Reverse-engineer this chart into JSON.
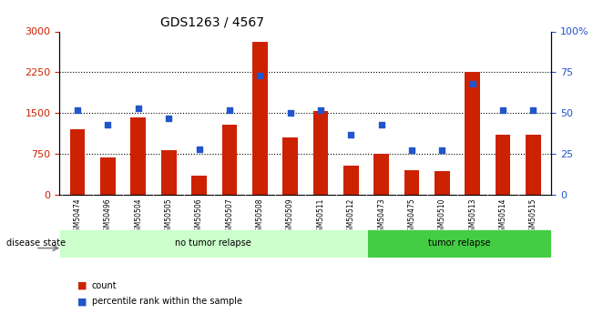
{
  "title": "GDS1263 / 4567",
  "samples": [
    "GSM50474",
    "GSM50496",
    "GSM50504",
    "GSM50505",
    "GSM50506",
    "GSM50507",
    "GSM50508",
    "GSM50509",
    "GSM50511",
    "GSM50512",
    "GSM50473",
    "GSM50475",
    "GSM50510",
    "GSM50513",
    "GSM50514",
    "GSM50515"
  ],
  "counts": [
    1200,
    680,
    1420,
    820,
    350,
    1280,
    2800,
    1050,
    1530,
    530,
    750,
    450,
    430,
    2250,
    1100,
    1100
  ],
  "percentiles": [
    52,
    43,
    53,
    47,
    28,
    52,
    73,
    50,
    52,
    37,
    43,
    27,
    27,
    68,
    52,
    52
  ],
  "no_tumor_count": 10,
  "tumor_count": 6,
  "ylim_left": [
    0,
    3000
  ],
  "ylim_right": [
    0,
    100
  ],
  "yticks_left": [
    0,
    750,
    1500,
    2250,
    3000
  ],
  "yticks_right": [
    0,
    25,
    50,
    75,
    100
  ],
  "bar_color": "#cc2200",
  "dot_color": "#2255cc",
  "no_tumor_color": "#ccffcc",
  "tumor_color": "#44cc44",
  "tick_label_bg": "#cccccc",
  "grid_color": "#000000",
  "background_color": "#ffffff"
}
